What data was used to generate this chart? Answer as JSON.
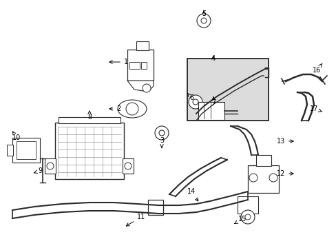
{
  "bg_color": "#ffffff",
  "line_color": "#2a2a2a",
  "box4_color": "#dcdcdc",
  "fig_w": 4.89,
  "fig_h": 3.6,
  "dpi": 100
}
